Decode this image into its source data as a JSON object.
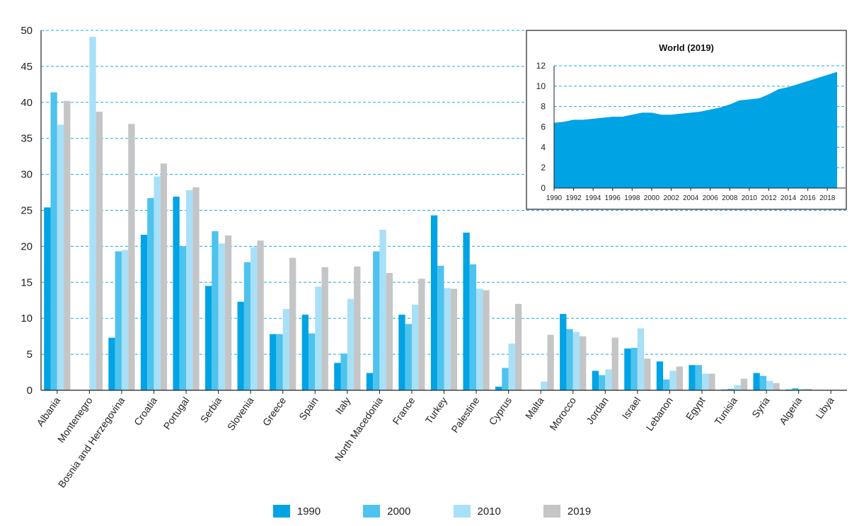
{
  "chart_data": [
    {
      "type": "bar",
      "title": "",
      "xlabel": "",
      "ylabel": "",
      "ylim": [
        0,
        50
      ],
      "yticks": [
        0,
        5,
        10,
        15,
        20,
        25,
        30,
        35,
        40,
        45,
        50
      ],
      "grid": true,
      "legend_position": "bottom",
      "categories": [
        "Albania",
        "Montenegro",
        "Bosnia and Herzegovina",
        "Croatia",
        "Portugal",
        "Serbia",
        "Slovenia",
        "Greece",
        "Spain",
        "Italy",
        "North Macedonia",
        "France",
        "Turkey",
        "Palestine",
        "Cyprus",
        "Malta",
        "Morocco",
        "Jordan",
        "Israel",
        "Lebanon",
        "Egypt",
        "Tunisia",
        "Syria",
        "Algeria",
        "Libya"
      ],
      "series": [
        {
          "name": "1990",
          "color": "#00a3e4",
          "values": [
            25.4,
            null,
            7.3,
            21.6,
            26.9,
            14.5,
            12.3,
            7.8,
            10.5,
            3.8,
            2.4,
            10.5,
            24.3,
            21.9,
            0.5,
            null,
            10.6,
            2.7,
            5.8,
            4.0,
            3.5,
            0.1,
            2.4,
            0.1,
            null
          ]
        },
        {
          "name": "2000",
          "color": "#4dc3ee",
          "values": [
            41.4,
            null,
            19.3,
            26.7,
            20.0,
            22.1,
            17.8,
            7.8,
            7.9,
            5.1,
            19.3,
            9.2,
            17.3,
            17.5,
            3.1,
            null,
            8.5,
            2.1,
            5.9,
            1.5,
            3.5,
            0.2,
            2.0,
            0.3,
            null
          ]
        },
        {
          "name": "2010",
          "color": "#a8e0f8",
          "values": [
            36.9,
            49.1,
            19.5,
            29.7,
            27.8,
            20.4,
            19.9,
            11.3,
            14.4,
            12.7,
            22.3,
            11.9,
            14.2,
            14.1,
            6.5,
            1.2,
            8.1,
            2.9,
            8.6,
            2.7,
            2.3,
            0.7,
            1.3,
            0.2,
            null
          ]
        },
        {
          "name": "2019",
          "color": "#c4c5c7",
          "values": [
            40.2,
            38.7,
            37.0,
            31.5,
            28.2,
            21.5,
            20.8,
            18.4,
            17.1,
            17.2,
            16.3,
            15.5,
            14.1,
            13.9,
            12.0,
            7.7,
            7.5,
            7.3,
            4.4,
            3.3,
            2.3,
            1.6,
            1.0,
            0.2,
            null
          ]
        }
      ]
    },
    {
      "type": "area",
      "title": "World (2019)",
      "xlabel": "",
      "ylabel": "",
      "ylim": [
        0,
        12
      ],
      "yticks": [
        0,
        2,
        4,
        6,
        8,
        10,
        12
      ],
      "xticks": [
        1990,
        1992,
        1994,
        1996,
        1998,
        2000,
        2002,
        2004,
        2006,
        2008,
        2010,
        2012,
        2014,
        2016,
        2018
      ],
      "grid": true,
      "color": "#00a3e4",
      "x": [
        1990,
        1991,
        1992,
        1993,
        1994,
        1995,
        1996,
        1997,
        1998,
        1999,
        2000,
        2001,
        2002,
        2003,
        2004,
        2005,
        2006,
        2007,
        2008,
        2009,
        2010,
        2011,
        2012,
        2013,
        2014,
        2015,
        2016,
        2017,
        2018,
        2019
      ],
      "y": [
        6.4,
        6.5,
        6.7,
        6.7,
        6.8,
        6.9,
        7.0,
        7.0,
        7.2,
        7.4,
        7.4,
        7.2,
        7.2,
        7.3,
        7.4,
        7.5,
        7.7,
        7.9,
        8.2,
        8.6,
        8.7,
        8.8,
        9.2,
        9.7,
        9.9,
        10.2,
        10.5,
        10.8,
        11.1,
        11.4
      ]
    }
  ]
}
